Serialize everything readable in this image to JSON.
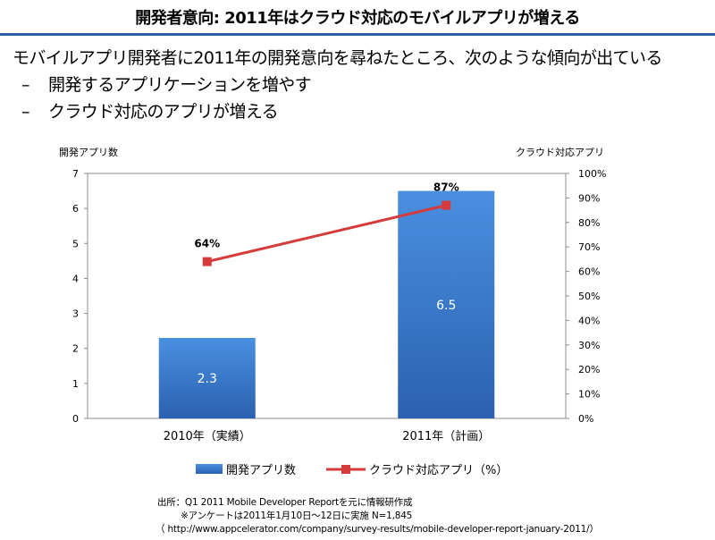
{
  "header": {
    "title": "開発者意向: 2011年はクラウド対応のモバイルアプリが増える"
  },
  "bullets": {
    "main": "モバイルアプリ開発者に2011年の開発意向を尋ねたところ、次のような傾向が出ている",
    "subs": [
      {
        "dash": "–",
        "text": "開発するアプリケーションを増やす"
      },
      {
        "dash": "–",
        "text": "クラウド対応のアプリが増える"
      }
    ]
  },
  "chart_data": {
    "type": "bar",
    "categories": [
      "2010年（実績）",
      "2011年（計画）"
    ],
    "series": [
      {
        "name": "開発アプリ数",
        "type": "bar",
        "axis": "left",
        "values": [
          2.3,
          6.5
        ],
        "labels": [
          "2.3",
          "6.5"
        ],
        "color": "#3b7dd1"
      },
      {
        "name": "クラウド対応アプリ（%）",
        "type": "line",
        "axis": "right",
        "values": [
          64,
          87
        ],
        "labels": [
          "64%",
          "87%"
        ],
        "color": "#d63b3b"
      }
    ],
    "y_left": {
      "label": "開発アプリ数",
      "min": 0,
      "max": 7,
      "ticks": [
        "0",
        "1",
        "2",
        "3",
        "4",
        "5",
        "6",
        "7"
      ]
    },
    "y_right": {
      "label": "クラウド対応アプリ",
      "min": 0,
      "max": 100,
      "ticks": [
        "0%",
        "10%",
        "20%",
        "30%",
        "40%",
        "50%",
        "60%",
        "70%",
        "80%",
        "90%",
        "100%"
      ]
    },
    "grid": false,
    "legend_position": "bottom"
  },
  "source": {
    "line1": "出所：Q1 2011 Mobile Developer Reportを元に情報研作成",
    "line2": "※アンケートは2011年1月10日〜12日に実施 N=1,845",
    "line3": "（ http://www.appcelerator.com/company/survey-results/mobile-developer-report-january-2011/）"
  }
}
